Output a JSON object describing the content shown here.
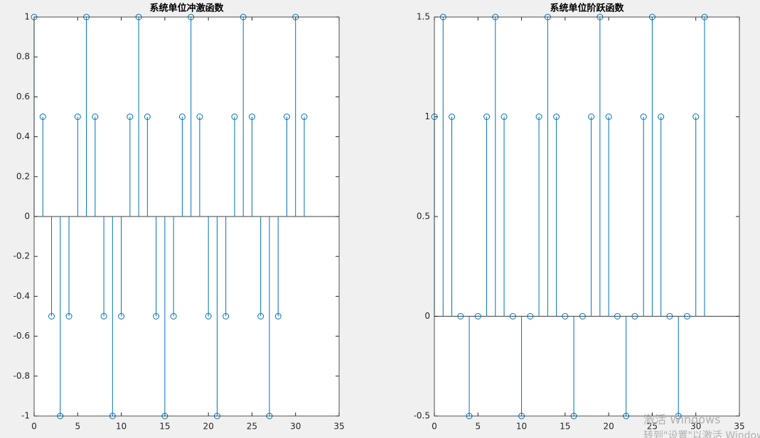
{
  "chart_data": [
    {
      "type": "stem",
      "title": "系统单位冲激函数",
      "color": "#0072bd",
      "x": [
        0,
        1,
        2,
        3,
        4,
        5,
        6,
        7,
        8,
        9,
        10,
        11,
        12,
        13,
        14,
        15,
        16,
        17,
        18,
        19,
        20,
        21,
        22,
        23,
        24,
        25,
        26,
        27,
        28,
        29,
        30,
        31
      ],
      "values": [
        1,
        0.5,
        -0.5,
        -1,
        -0.5,
        0.5,
        1,
        0.5,
        -0.5,
        -1,
        -0.5,
        0.5,
        1,
        0.5,
        -0.5,
        -1,
        -0.5,
        0.5,
        1,
        0.5,
        -0.5,
        -1,
        -0.5,
        0.5,
        1,
        0.5,
        -0.5,
        -1,
        -0.5,
        0.5,
        1,
        0.5
      ],
      "xlim": [
        0,
        35
      ],
      "xticks": [
        0,
        5,
        10,
        15,
        20,
        25,
        30,
        35
      ],
      "ylim": [
        -1,
        1
      ],
      "yticks": [
        -1,
        -0.8,
        -0.6,
        -0.4,
        -0.2,
        0,
        0.2,
        0.4,
        0.6,
        0.8,
        1
      ]
    },
    {
      "type": "stem",
      "title": "系统单位阶跃函数",
      "color": "#0072bd",
      "x": [
        0,
        1,
        2,
        3,
        4,
        5,
        6,
        7,
        8,
        9,
        10,
        11,
        12,
        13,
        14,
        15,
        16,
        17,
        18,
        19,
        20,
        21,
        22,
        23,
        24,
        25,
        26,
        27,
        28,
        29,
        30,
        31
      ],
      "values": [
        1,
        1.5,
        1,
        0,
        -0.5,
        0,
        1,
        1.5,
        1,
        0,
        -0.5,
        0,
        1,
        1.5,
        1,
        0,
        -0.5,
        0,
        1,
        1.5,
        1,
        0,
        -0.5,
        0,
        1,
        1.5,
        1,
        0,
        -0.5,
        0,
        1,
        1.5
      ],
      "xlim": [
        0,
        35
      ],
      "xticks": [
        0,
        5,
        10,
        15,
        20,
        25,
        30,
        35
      ],
      "ylim": [
        -0.5,
        1.5
      ],
      "yticks": [
        -0.5,
        0,
        0.5,
        1,
        1.5
      ]
    }
  ],
  "watermark": [
    "激活 Windows",
    "转到\"设置\"以激活 Windows"
  ]
}
